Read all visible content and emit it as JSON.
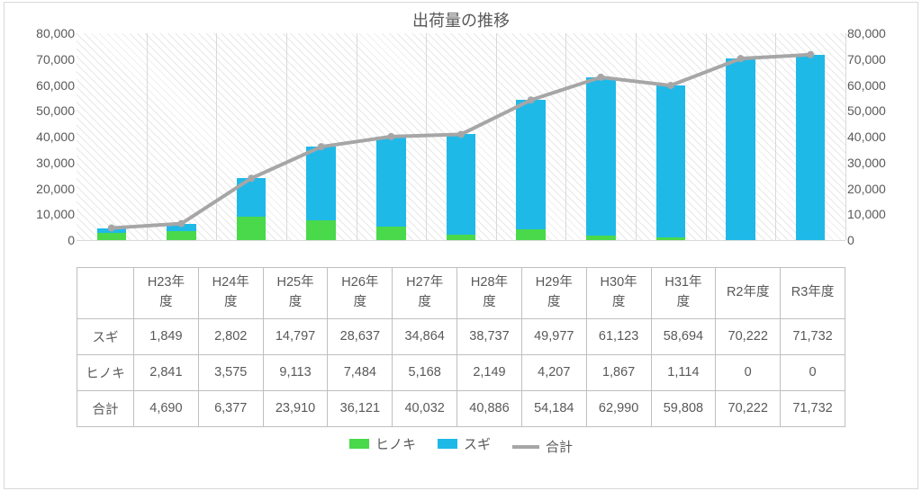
{
  "chart": {
    "title": "出荷量の推移",
    "title_fontsize": 18,
    "background": "#ffffff",
    "plot_hatched": true,
    "grid_color": "#d9d9d9",
    "border_color": "#d9d9d9",
    "text_color": "#595959",
    "y_axis": {
      "min": 0,
      "max": 80000,
      "tick_step": 10000,
      "ticks": [
        "0",
        "10,000",
        "20,000",
        "30,000",
        "40,000",
        "50,000",
        "60,000",
        "70,000",
        "80,000"
      ],
      "label_fontsize": 14
    },
    "categories": [
      "H23年度",
      "H24年度",
      "H25年度",
      "H26年度",
      "H27年度",
      "H28年度",
      "H29年度",
      "H30年度",
      "H31年度",
      "R2年度",
      "R3年度"
    ],
    "categories_wrapped": [
      [
        "H23年",
        "度"
      ],
      [
        "H24年",
        "度"
      ],
      [
        "H25年",
        "度"
      ],
      [
        "H26年",
        "度"
      ],
      [
        "H27年",
        "度"
      ],
      [
        "H28年",
        "度"
      ],
      [
        "H29年",
        "度"
      ],
      [
        "H30年",
        "度"
      ],
      [
        "H31年",
        "度"
      ],
      [
        "R2年度"
      ],
      [
        "R3年度"
      ]
    ],
    "series": {
      "hinoki": {
        "label": "ヒノキ",
        "type": "bar",
        "color": "#4ad94a",
        "values": [
          2841,
          3575,
          9113,
          7484,
          5168,
          2149,
          4207,
          1867,
          1114,
          0,
          0
        ],
        "display": [
          "2,841",
          "3,575",
          "9,113",
          "7,484",
          "5,168",
          "2,149",
          "4,207",
          "1,867",
          "1,114",
          "0",
          "0"
        ]
      },
      "sugi": {
        "label": "スギ",
        "type": "bar",
        "color": "#1fb9e8",
        "values": [
          1849,
          2802,
          14797,
          28637,
          34864,
          38737,
          49977,
          61123,
          58694,
          70222,
          71732
        ],
        "display": [
          "1,849",
          "2,802",
          "14,797",
          "28,637",
          "34,864",
          "38,737",
          "49,977",
          "61,123",
          "58,694",
          "70,222",
          "71,732"
        ]
      },
      "total": {
        "label": "合計",
        "type": "line",
        "color": "#a6a6a6",
        "line_width": 4,
        "marker": "circle",
        "marker_size": 4,
        "values": [
          4690,
          6377,
          23910,
          36121,
          40032,
          40886,
          54184,
          62990,
          59808,
          70222,
          71732
        ],
        "display": [
          "4,690",
          "6,377",
          "23,910",
          "36,121",
          "40,032",
          "40,886",
          "54,184",
          "62,990",
          "59,808",
          "70,222",
          "71,732"
        ]
      }
    },
    "bar_width_ratio": 0.42,
    "legend": {
      "items": [
        {
          "key": "hinoki",
          "type": "bar",
          "label": "ヒノキ",
          "color": "#4ad94a"
        },
        {
          "key": "sugi",
          "type": "bar",
          "label": "スギ",
          "color": "#1fb9e8"
        },
        {
          "key": "total",
          "type": "line",
          "label": "合計",
          "color": "#a6a6a6"
        }
      ]
    },
    "table_row_order": [
      "sugi",
      "hinoki",
      "total"
    ]
  }
}
